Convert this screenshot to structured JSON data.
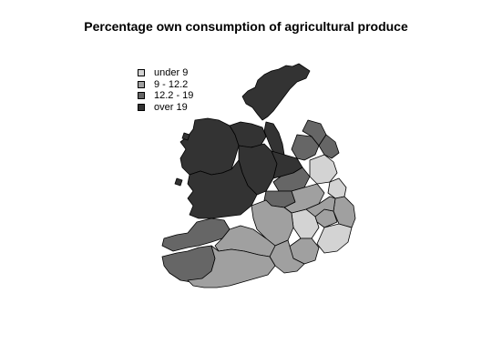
{
  "title": "Percentage own consumption of agricultural produce",
  "legend": {
    "items": [
      {
        "label": "under 9",
        "color": "#d3d3d3"
      },
      {
        "label": "9 - 12.2",
        "color": "#a0a0a0"
      },
      {
        "label": "12.2 - 19",
        "color": "#666666"
      },
      {
        "label": "over 19",
        "color": "#333333"
      }
    ]
  },
  "map": {
    "classes": {
      "c1": "#d3d3d3",
      "c2": "#a0a0a0",
      "c3": "#666666",
      "c4": "#333333"
    }
  }
}
